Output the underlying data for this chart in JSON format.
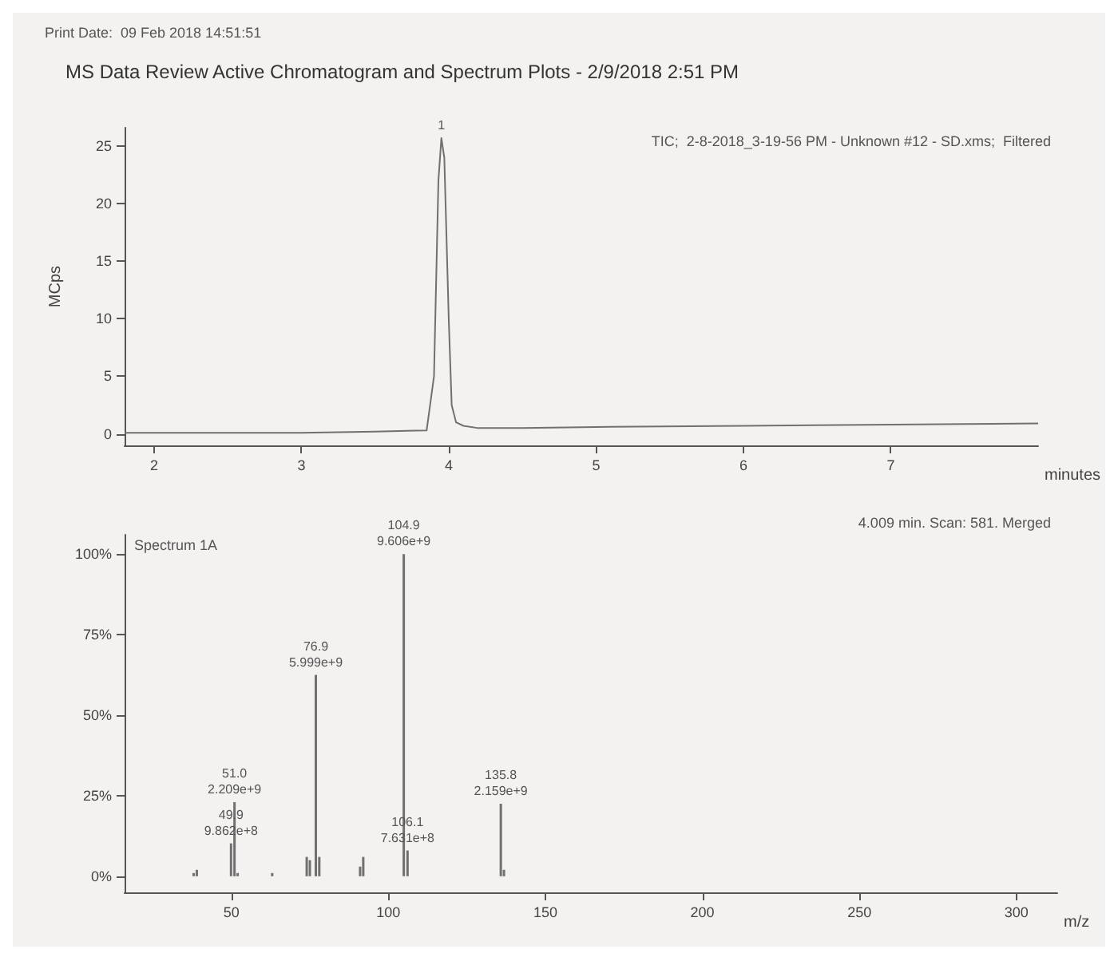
{
  "chart_data": [
    {
      "type": "line",
      "title": "MS Data Review Active Chromatogram and Spectrum Plots - 2/9/2018 2:51 PM",
      "ylabel": "MCps",
      "xlabel": "minutes",
      "annotations": [
        "Print Date:  09 Feb 2018 14:51:51",
        "TIC;  2-8-2018_3-19-56 PM - Unknown #12 - SD.xms;  Filtered",
        {
          "text": "1",
          "x": 3.95,
          "y": 25.7
        }
      ],
      "x": [
        1.8,
        2.5,
        3.0,
        3.5,
        3.85,
        3.9,
        3.93,
        3.95,
        3.97,
        4.0,
        4.02,
        4.05,
        4.1,
        4.2,
        4.5,
        5,
        6,
        7,
        8
      ],
      "values": [
        0.1,
        0.1,
        0.1,
        0.2,
        0.3,
        5,
        22,
        25.7,
        24,
        10,
        2.5,
        1.0,
        0.7,
        0.5,
        0.5,
        0.6,
        0.7,
        0.8,
        0.9
      ],
      "color": "#707070",
      "marker": "none",
      "xlim": [
        1.8,
        8.0
      ],
      "ylim": [
        -1,
        26.6
      ],
      "xticks": [
        2,
        3,
        4,
        5,
        6,
        7
      ],
      "yticks": [
        0,
        5,
        10,
        15,
        20,
        25
      ],
      "grid": false
    },
    {
      "type": "bar",
      "xlabel": "m/z",
      "annotations": [
        "Spectrum 1A",
        "4.009 min. Scan: 581. Merged",
        {
          "text": "49.9\n9.862e+8",
          "x": 49.9,
          "y": 10.2
        },
        {
          "text": "51.0\n2.209e+9",
          "x": 51.0,
          "y": 23
        },
        {
          "text": "76.9\n5.999e+9",
          "x": 76.9,
          "y": 62.5
        },
        {
          "text": "104.9\n9.606e+9",
          "x": 104.9,
          "y": 100
        },
        {
          "text": "106.1\n7.631e+8",
          "x": 106.1,
          "y": 8
        },
        {
          "text": "135.8\n2.159e+9",
          "x": 135.8,
          "y": 22.5
        }
      ],
      "x": [
        38,
        39,
        49.9,
        51.0,
        52,
        63,
        74,
        75,
        76.9,
        78,
        91,
        92,
        104.9,
        106.1,
        135.8,
        136.8
      ],
      "values": [
        1,
        2,
        10.2,
        23,
        1,
        1,
        6,
        5,
        62.5,
        6,
        3,
        6,
        100,
        8,
        22.5,
        2
      ],
      "color": "#707070",
      "xlim": [
        16,
        313
      ],
      "ylim": [
        -5,
        106
      ],
      "xticks": [
        50,
        100,
        150,
        200,
        250,
        300
      ],
      "yticks": [
        {
          "value": 0,
          "label": "0%"
        },
        {
          "value": 25,
          "label": "25%"
        },
        {
          "value": 50,
          "label": "50%"
        },
        {
          "value": 75,
          "label": "75%"
        },
        {
          "value": 100,
          "label": "100%"
        }
      ],
      "grid": false
    }
  ]
}
